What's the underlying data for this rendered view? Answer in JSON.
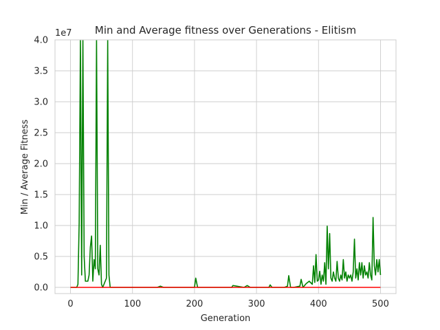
{
  "chart_data": {
    "type": "line",
    "title": "Min and Average fitness over Generations - Elitism",
    "xlabel": "Generation",
    "ylabel": "Min / Average Fitness",
    "y_offset_label": "1e7",
    "xlim": [
      -25,
      525
    ],
    "ylim": [
      -0.1,
      4.0
    ],
    "xticks": [
      0,
      100,
      200,
      300,
      400,
      500
    ],
    "xtick_labels": [
      "0",
      "100",
      "200",
      "300",
      "400",
      "500"
    ],
    "yticks": [
      0.0,
      0.5,
      1.0,
      1.5,
      2.0,
      2.5,
      3.0,
      3.5,
      4.0
    ],
    "ytick_labels": [
      "0.0",
      "0.5",
      "1.0",
      "1.5",
      "2.0",
      "2.5",
      "3.0",
      "3.5",
      "4.0"
    ],
    "grid": true,
    "series": [
      {
        "color": "#008000",
        "x": [
          0,
          10,
          12,
          14,
          16,
          18,
          20,
          22,
          24,
          28,
          30,
          32,
          34,
          36,
          38,
          40,
          42,
          44,
          46,
          48,
          50,
          52,
          54,
          56,
          58,
          60,
          62,
          64,
          70,
          100,
          140,
          145,
          150,
          200,
          202,
          205,
          210,
          250,
          260,
          262,
          280,
          285,
          290,
          320,
          322,
          325,
          345,
          350,
          352,
          355,
          360,
          370,
          372,
          375,
          380,
          385,
          390,
          392,
          394,
          396,
          398,
          400,
          402,
          404,
          406,
          408,
          410,
          412,
          414,
          416,
          418,
          420,
          422,
          424,
          426,
          428,
          430,
          432,
          434,
          436,
          438,
          440,
          442,
          444,
          446,
          448,
          450,
          452,
          454,
          456,
          458,
          460,
          462,
          464,
          466,
          468,
          470,
          472,
          474,
          476,
          478,
          480,
          482,
          484,
          486,
          488,
          490,
          492,
          494,
          496,
          498,
          500
        ],
        "values": [
          0.0,
          0.0,
          0.05,
          1.05,
          4.0,
          0.2,
          4.0,
          0.5,
          0.1,
          0.1,
          0.2,
          0.65,
          0.83,
          0.1,
          0.45,
          0.3,
          4.0,
          0.3,
          0.2,
          0.68,
          0.05,
          0.0,
          0.05,
          0.1,
          0.15,
          4.0,
          0.2,
          0.0,
          0.0,
          0.0,
          0.0,
          0.02,
          0.0,
          0.0,
          0.15,
          0.0,
          0.0,
          0.0,
          0.0,
          0.03,
          0.0,
          0.03,
          0.0,
          0.0,
          0.04,
          0.0,
          0.0,
          0.02,
          0.19,
          0.0,
          0.0,
          0.02,
          0.13,
          0.0,
          0.06,
          0.1,
          0.05,
          0.35,
          0.08,
          0.53,
          0.1,
          0.12,
          0.26,
          0.05,
          0.2,
          0.1,
          0.4,
          0.05,
          0.99,
          0.3,
          0.87,
          0.15,
          0.1,
          0.25,
          0.15,
          0.1,
          0.42,
          0.15,
          0.1,
          0.2,
          0.12,
          0.45,
          0.15,
          0.25,
          0.1,
          0.2,
          0.15,
          0.2,
          0.1,
          0.25,
          0.78,
          0.15,
          0.3,
          0.12,
          0.4,
          0.2,
          0.4,
          0.15,
          0.35,
          0.2,
          0.25,
          0.15,
          0.4,
          0.2,
          0.12,
          1.13,
          0.35,
          0.2,
          0.45,
          0.25,
          0.45,
          0.2
        ]
      },
      {
        "color": "#ff0000",
        "x": [
          0,
          500
        ],
        "values": [
          0.0,
          0.0
        ]
      }
    ]
  }
}
